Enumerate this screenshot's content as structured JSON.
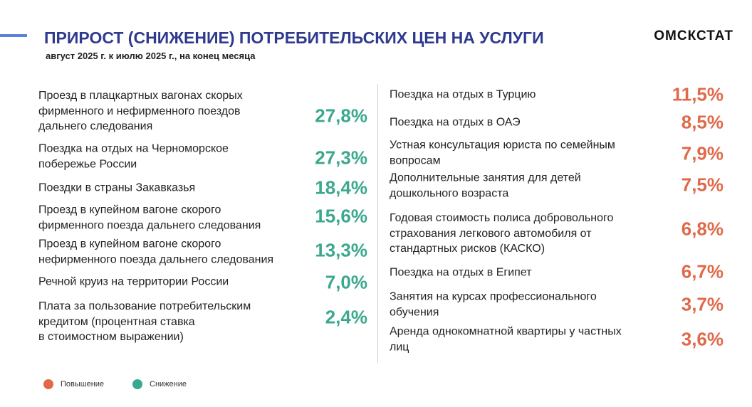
{
  "header": {
    "title": "ПРИРОСТ (СНИЖЕНИЕ) ПОТРЕБИТЕЛЬСКИХ ЦЕН НА УСЛУГИ",
    "subtitle": "август 2025 г. к июлю 2025 г., на конец месяца",
    "brand": "ОМСКСТАТ"
  },
  "left": {
    "color": "#3aa88e",
    "items": [
      {
        "label": "Проезд в плацкартных вагонах скорых\nфирменного и нефирменного поездов\nдальнего следования",
        "value": "27,8%"
      },
      {
        "label": "Поездка на отдых на Черноморское\nпобережье России",
        "value": "27,3%"
      },
      {
        "label": "Поездки в страны Закавказья",
        "value": "18,4%"
      },
      {
        "label": "Проезд в купейном вагоне скорого\nфирменного поезда дальнего следования",
        "value": "15,6%"
      },
      {
        "label": "Проезд в купейном вагоне скорого\nнефирменного поезда дальнего следования",
        "value": "13,3%"
      },
      {
        "label": "Речной круиз на территории России",
        "value": "7,0%"
      },
      {
        "label": "Плата за пользование потребительским\nкредитом (процентная ставка\nв стоимостном выражении)",
        "value": "2,4%"
      }
    ]
  },
  "right": {
    "color": "#e0694a",
    "items": [
      {
        "label": "Поездка на отдых в Турцию",
        "value": "11,5%"
      },
      {
        "label": "Поездка на отдых в ОАЭ",
        "value": "8,5%"
      },
      {
        "label": "Устная консультация юриста по семейным\nвопросам",
        "value": "7,9%"
      },
      {
        "label": "Дополнительные занятия для детей\nдошкольного возраста",
        "value": "7,5%"
      },
      {
        "label": "Годовая стоимость полиса добровольного\nстрахования легкового автомобиля от\nстандартных рисков (КАСКО)",
        "value": "6,8%"
      },
      {
        "label": "Поездка на отдых в Египет",
        "value": "6,7%"
      },
      {
        "label": "Занятия на курсах профессионального\nобучения",
        "value": "3,7%"
      },
      {
        "label": "Аренда однокомнатной квартиры у частных\nлиц",
        "value": "3,6%"
      }
    ]
  },
  "legend": [
    {
      "label": "Повышение",
      "color": "#e0694a"
    },
    {
      "label": "Снижение",
      "color": "#3aa88e"
    }
  ]
}
